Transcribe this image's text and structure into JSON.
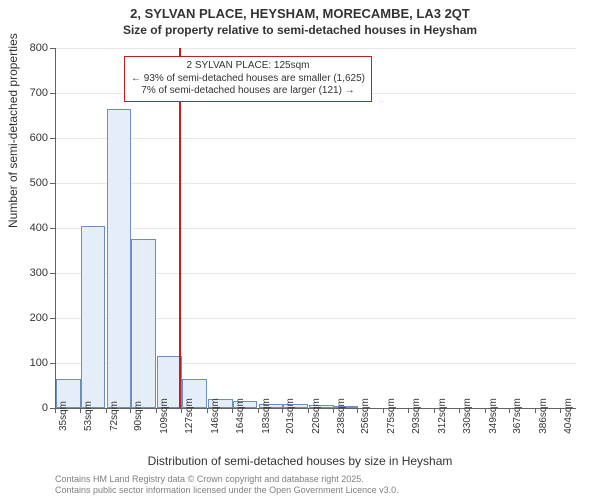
{
  "title_main": "2, SYLVAN PLACE, HEYSHAM, MORECAMBE, LA3 2QT",
  "title_sub": "Size of property relative to semi-detached houses in Heysham",
  "y_axis_label": "Number of semi-detached properties",
  "x_axis_label": "Distribution of semi-detached houses by size in Heysham",
  "callout": {
    "line1": "2 SYLVAN PLACE: 125sqm",
    "line2": "← 93% of semi-detached houses are smaller (1,625)",
    "line3": "7% of semi-detached houses are larger (121) →"
  },
  "footer_line1": "Contains HM Land Registry data © Crown copyright and database right 2025.",
  "footer_line2": "Contains public sector information licensed under the Open Government Licence v3.0.",
  "histogram": {
    "type": "histogram",
    "bar_color": "#e5edf9",
    "bar_border": "#6a8fc3",
    "grid_color": "#e8e8e8",
    "axis_color": "#646464",
    "vline_color": "#c22020",
    "vline_x": 125,
    "background_color": "#ffffff",
    "ylim": [
      0,
      800
    ],
    "ytick_step": 100,
    "xlim": [
      35,
      415
    ],
    "x_ticks": [
      35,
      53,
      72,
      90,
      109,
      127,
      146,
      164,
      183,
      201,
      220,
      238,
      256,
      275,
      293,
      312,
      330,
      349,
      367,
      386,
      404
    ],
    "x_tick_suffix": "sqm",
    "bin_starts": [
      35,
      53,
      72,
      90,
      109,
      127,
      146,
      164,
      183,
      201,
      220,
      238,
      256,
      275,
      293,
      312,
      330,
      349,
      367,
      386
    ],
    "bin_width_data": 18,
    "values": [
      65,
      405,
      665,
      375,
      115,
      65,
      20,
      15,
      10,
      8,
      6,
      5,
      0,
      0,
      0,
      0,
      0,
      0,
      0,
      0
    ]
  },
  "colors": {
    "text": "#333333",
    "footer": "#808080"
  }
}
